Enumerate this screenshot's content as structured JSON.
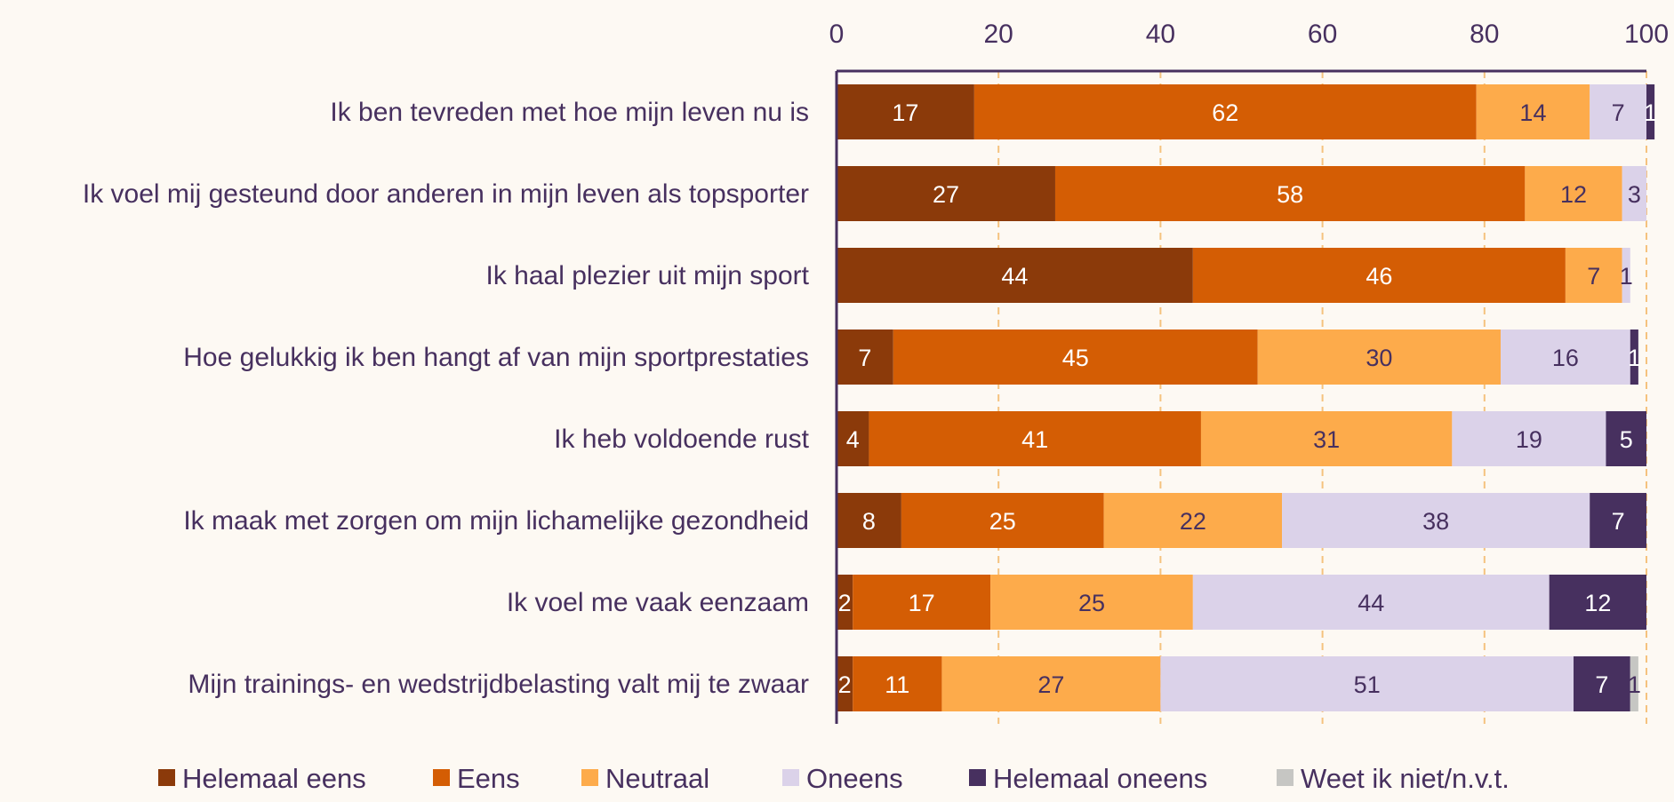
{
  "chart_data": {
    "type": "bar",
    "orientation": "horizontal",
    "stacked": true,
    "xlim": [
      0,
      100
    ],
    "xticks": [
      "0",
      "20",
      "40",
      "60",
      "80",
      "100"
    ],
    "grid": true,
    "legend_position": "bottom",
    "categories": [
      "Ik ben tevreden met hoe mijn leven nu is",
      "Ik voel mij gesteund door anderen in mijn leven als topsporter",
      "Ik haal plezier uit mijn sport",
      "Hoe gelukkig ik ben hangt af van mijn sportprestaties",
      "Ik heb voldoende rust",
      "Ik maak met zorgen om mijn lichamelijke gezondheid",
      "Ik voel me vaak eenzaam",
      "Mijn trainings- en wedstrijdbelasting valt mij te zwaar"
    ],
    "series": [
      {
        "name": "Helemaal eens",
        "color": "#8b3a0a",
        "label_color": "#ffffff",
        "values": [
          17,
          27,
          44,
          7,
          4,
          8,
          2,
          2
        ]
      },
      {
        "name": "Eens",
        "color": "#d45d04",
        "label_color": "#ffffff",
        "values": [
          62,
          58,
          46,
          45,
          41,
          25,
          17,
          11
        ]
      },
      {
        "name": "Neutraal",
        "color": "#fdab4b",
        "label_color": "#47305f",
        "values": [
          14,
          12,
          7,
          30,
          31,
          22,
          25,
          27
        ]
      },
      {
        "name": "Oneens",
        "color": "#dbd2e9",
        "label_color": "#47305f",
        "values": [
          7,
          3,
          1,
          16,
          19,
          38,
          44,
          51
        ]
      },
      {
        "name": "Helemaal oneens",
        "color": "#47305f",
        "label_color": "#ffffff",
        "values": [
          1,
          0,
          0,
          1,
          5,
          7,
          12,
          7
        ]
      },
      {
        "name": "Weet ik niet/n.v.t.",
        "color": "#c6c6c3",
        "label_color": "#47305f",
        "values": [
          0,
          0,
          0,
          0,
          0,
          0,
          0,
          1
        ]
      }
    ]
  }
}
